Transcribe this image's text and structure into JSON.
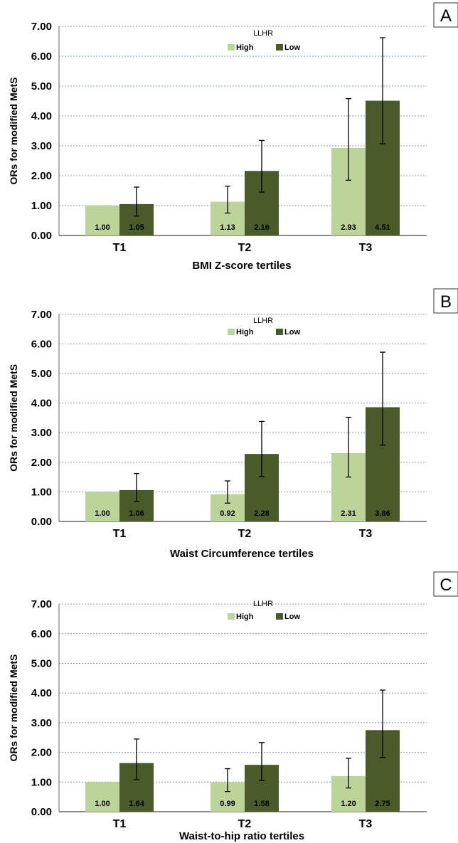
{
  "colors": {
    "high": "#bcd39a",
    "low": "#4a5a28",
    "grid": "#8a97b8"
  },
  "chart_data": [
    {
      "type": "bar",
      "panel_label": "A",
      "ylabel": "ORs for modified MetS",
      "xlabel": "BMI Z-score tertiles",
      "legend_title": "LLHR",
      "legend_position": "top-center",
      "ylim": [
        0,
        7
      ],
      "y_ticks": [
        "0.00",
        "1.00",
        "2.00",
        "3.00",
        "4.00",
        "5.00",
        "6.00",
        "7.00"
      ],
      "grid": true,
      "categories": [
        "T1",
        "T2",
        "T3"
      ],
      "series": [
        {
          "name": "High",
          "values": [
            1.0,
            1.13,
            2.93
          ],
          "labels": [
            "1.00",
            "1.13",
            "2.93"
          ],
          "err_low": [
            null,
            0.75,
            1.85
          ],
          "err_high": [
            null,
            1.65,
            4.58
          ]
        },
        {
          "name": "Low",
          "values": [
            1.05,
            2.16,
            4.51
          ],
          "labels": [
            "1.05",
            "2.16",
            "4.51"
          ],
          "err_low": [
            0.65,
            1.45,
            3.07
          ],
          "err_high": [
            1.62,
            3.18,
            6.62
          ]
        }
      ]
    },
    {
      "type": "bar",
      "panel_label": "B",
      "ylabel": "ORs for modified MetS",
      "xlabel": "Waist Circumference tertiles",
      "legend_title": "LLHR",
      "legend_position": "top-center",
      "ylim": [
        0,
        7
      ],
      "y_ticks": [
        "0.00",
        "1.00",
        "2.00",
        "3.00",
        "4.00",
        "5.00",
        "6.00",
        "7.00"
      ],
      "grid": true,
      "categories": [
        "T1",
        "T2",
        "T3"
      ],
      "series": [
        {
          "name": "High",
          "values": [
            1.0,
            0.92,
            2.31
          ],
          "labels": [
            "1.00",
            "0.92",
            "2.31"
          ],
          "err_low": [
            null,
            0.62,
            1.5
          ],
          "err_high": [
            null,
            1.37,
            3.52
          ]
        },
        {
          "name": "Low",
          "values": [
            1.06,
            2.28,
            3.86
          ],
          "labels": [
            "1.06",
            "2.28",
            "3.86"
          ],
          "err_low": [
            0.68,
            1.52,
            2.58
          ],
          "err_high": [
            1.62,
            3.38,
            5.72
          ]
        }
      ]
    },
    {
      "type": "bar",
      "panel_label": "C",
      "ylabel": "ORs for modified MetS",
      "xlabel": "Waist-to-hip ratio tertiles",
      "legend_title": "LLHR",
      "legend_position": "top-center",
      "ylim": [
        0,
        7
      ],
      "y_ticks": [
        "0.00",
        "1.00",
        "2.00",
        "3.00",
        "4.00",
        "5.00",
        "6.00",
        "7.00"
      ],
      "grid": true,
      "categories": [
        "T1",
        "T2",
        "T3"
      ],
      "series": [
        {
          "name": "High",
          "values": [
            1.0,
            0.99,
            1.2
          ],
          "labels": [
            "1.00",
            "0.99",
            "1.20"
          ],
          "err_low": [
            null,
            0.68,
            0.8
          ],
          "err_high": [
            null,
            1.45,
            1.8
          ]
        },
        {
          "name": "Low",
          "values": [
            1.64,
            1.58,
            2.75
          ],
          "labels": [
            "1.64",
            "1.58",
            "2.75"
          ],
          "err_low": [
            1.08,
            1.05,
            1.83
          ],
          "err_high": [
            2.45,
            2.33,
            4.1
          ]
        }
      ]
    }
  ]
}
